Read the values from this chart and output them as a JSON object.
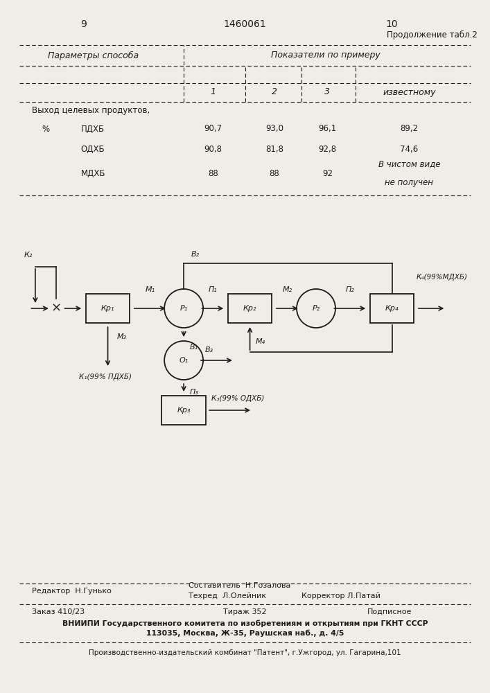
{
  "page_num_left": "9",
  "page_num_center": "1460061",
  "page_num_right": "10",
  "continuation": "Продолжение табл.2",
  "col_header_left": "Параметры способа",
  "col_header_right": "Показатели по примеру",
  "sub_cols": [
    "1",
    "2",
    "3",
    "известному"
  ],
  "row_header": "Выход целевых продуктов,",
  "rows": [
    {
      "label": "ПДХБ",
      "prefix": "%",
      "values": [
        "90,7",
        "93,0",
        "96,1",
        "89,2"
      ]
    },
    {
      "label": "ОДХБ",
      "prefix": "",
      "values": [
        "90,8",
        "81,8",
        "92,8",
        "74,6"
      ]
    },
    {
      "label": "МДХБ",
      "prefix": "",
      "values": [
        "88",
        "88",
        "92",
        "В чистом виде\nне получен"
      ]
    }
  ],
  "editor_line": "Редактор  Н.Гунько",
  "compiler_line": "Составитель  Н.Гозалова",
  "techred_line": "Техред  Л.Олейник",
  "corrector_line": "Корректор Л.Патай",
  "order_line": "Заказ 410/23",
  "tirazh_line": "Тираж 352",
  "podpisnoe_line": "Подписное",
  "vniip_line": "ВНИИПИ Государственного комитета по изобретениям и открытиям при ГКНТ СССР",
  "address_line": "113035, Москва, Ж-35, Раушская наб., д. 4/5",
  "publisher_line": "Производственно-издательский комбинат \"Патент\", г.Ужгород, ул. Гагарина,101",
  "bg_color": "#f0ede8",
  "text_color": "#1a1a1a"
}
